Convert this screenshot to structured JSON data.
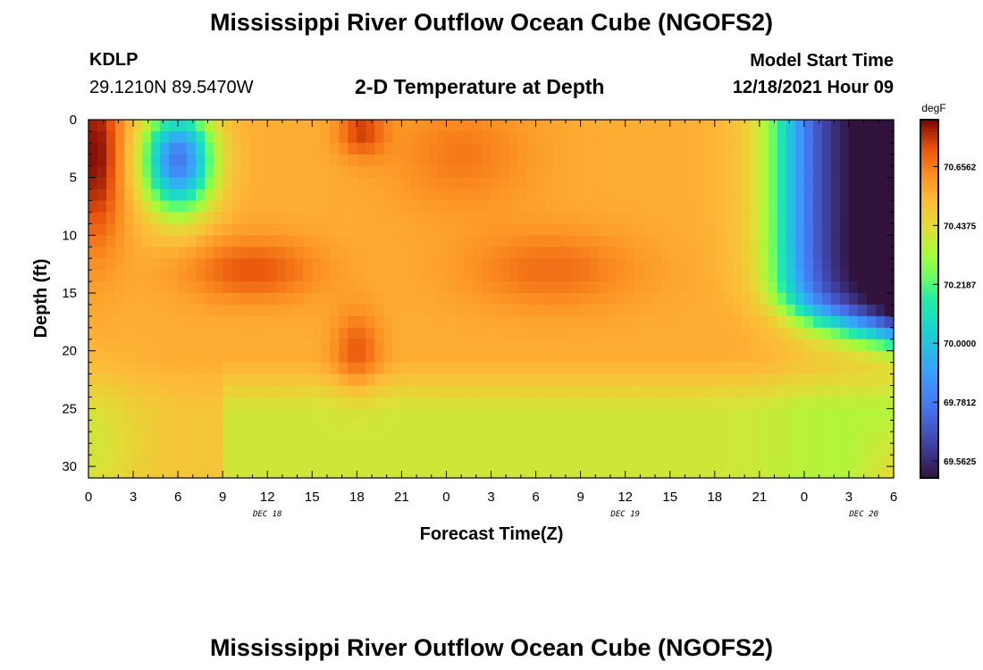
{
  "header": {
    "title": "Mississippi River Outflow Ocean Cube (NGOFS2)",
    "station": "KDLP",
    "coordinates": "29.1210N  89.5470W",
    "subtitle": "2-D Temperature at Depth",
    "model_start_label": "Model Start Time",
    "model_start_value": "12/18/2021 Hour 09",
    "second_title": "Mississippi River Outflow Ocean Cube (NGOFS2)"
  },
  "chart_data": {
    "type": "heatmap",
    "title": "2-D Temperature at Depth",
    "xlabel": "Forecast Time(Z)",
    "ylabel": "Depth (ft)",
    "colorbar_unit": "degF",
    "x_ticks": [
      "0",
      "3",
      "6",
      "9",
      "12",
      "15",
      "18",
      "21",
      "0",
      "3",
      "6",
      "9",
      "12",
      "15",
      "18",
      "21",
      "0",
      "3",
      "6"
    ],
    "date_labels": [
      {
        "label": "DEC 18",
        "hour": 12
      },
      {
        "label": "DEC 19",
        "hour": 36
      },
      {
        "label": "DEC 20",
        "hour": 52
      }
    ],
    "x_range_hours": [
      0,
      54
    ],
    "y_ticks": [
      0,
      5,
      10,
      15,
      20,
      25,
      30
    ],
    "ylim_ft": [
      0,
      31
    ],
    "colorbar_ticks": [
      "70.6562",
      "70.4375",
      "70.2187",
      "70.0000",
      "69.7812",
      "69.5625"
    ],
    "colorbar_tick_values": [
      70.6562,
      70.4375,
      70.2187,
      70.0,
      69.7812,
      69.5625
    ],
    "color_range": [
      69.5,
      70.83
    ],
    "grid": false,
    "features": [
      {
        "type": "hot_core",
        "hour": 0.5,
        "depth": 3,
        "temp": 70.83
      },
      {
        "type": "cold_lens",
        "hour": 6,
        "depth": 4,
        "temp": 69.78
      },
      {
        "type": "hot_core",
        "hour": 11,
        "depth": 13,
        "temp": 70.76
      },
      {
        "type": "hot_core",
        "hour": 18.3,
        "depth": 1,
        "temp": 70.76
      },
      {
        "type": "hot_core",
        "hour": 18,
        "depth": 20,
        "temp": 70.74
      },
      {
        "type": "warm_layer",
        "hour": 31,
        "depth": 13,
        "temp": 70.7
      },
      {
        "type": "cool_bottom",
        "hour": 14,
        "depth": 28,
        "temp": 70.37
      },
      {
        "type": "cold_front_onset_hour",
        "hour": 45
      },
      {
        "type": "cold_water_max",
        "hour": 54,
        "depth": 3,
        "temp": 69.52
      }
    ]
  }
}
